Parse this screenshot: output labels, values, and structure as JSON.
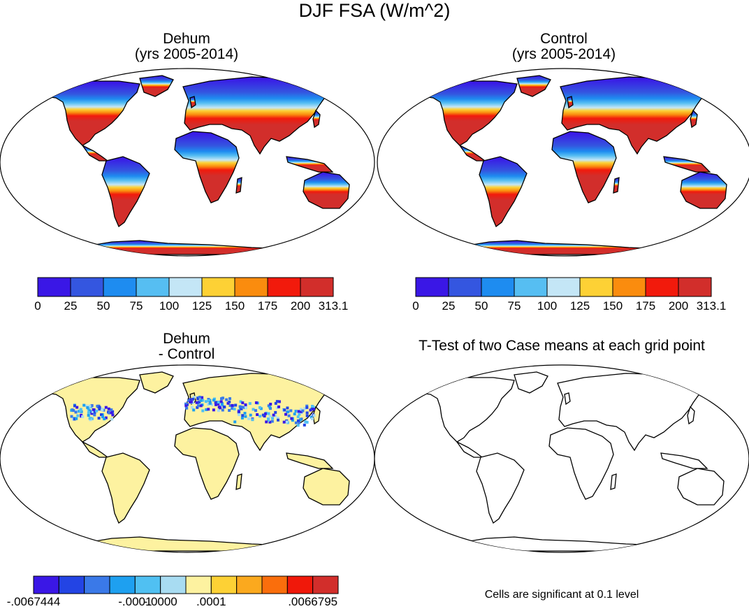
{
  "figure": {
    "title": "DJF FSA (W/m^2)",
    "colors": {
      "abs_scale": [
        "#3a17e6",
        "#3456e0",
        "#1e8cf0",
        "#56bef2",
        "#c4e6f6",
        "#fdd135",
        "#fa8c0e",
        "#f21a0c",
        "#d22e2b"
      ],
      "diff_scale": [
        "#3a17e6",
        "#2344e4",
        "#3a79e8",
        "#1ea0f0",
        "#50c0f2",
        "#a8dcf2",
        "#fdf2a0",
        "#fdd135",
        "#fba91e",
        "#fa6e0c",
        "#f0180a",
        "#d22e2b"
      ],
      "land_diff": "#fdf2a0",
      "outline": "#000000"
    }
  },
  "chart_data": [
    {
      "type": "heatmap",
      "panel": "top-left",
      "title_line1": "Dehum",
      "title_line2": "(yrs 2005-2014)",
      "projection": "Robinson",
      "variable": "FSA",
      "units": "W/m^2",
      "colorbar": {
        "levels": [
          0,
          25,
          50,
          75,
          100,
          125,
          150,
          175,
          200,
          313.1
        ],
        "tick_labels": [
          "0",
          "25",
          "50",
          "75",
          "100",
          "125",
          "150",
          "175",
          "200",
          "313.1"
        ]
      }
    },
    {
      "type": "heatmap",
      "panel": "top-right",
      "title_line1": "Control",
      "title_line2": "(yrs 2005-2014)",
      "projection": "Robinson",
      "variable": "FSA",
      "units": "W/m^2",
      "colorbar": {
        "levels": [
          0,
          25,
          50,
          75,
          100,
          125,
          150,
          175,
          200,
          313.1
        ],
        "tick_labels": [
          "0",
          "25",
          "50",
          "75",
          "100",
          "125",
          "150",
          "175",
          "200",
          "313.1"
        ]
      }
    },
    {
      "type": "heatmap",
      "panel": "bottom-left",
      "title_line1": "Dehum",
      "title_line2": "- Control",
      "projection": "Robinson",
      "variable": "FSA difference",
      "colorbar": {
        "n_bins": 12,
        "tick_labels": [
          {
            "text": "-.0067444",
            "edge": 0
          },
          {
            "text": "-.0001",
            "edge": 4
          },
          {
            "text": "-.0000",
            "edge": 5
          },
          {
            "text": ".0001",
            "edge": 7
          },
          {
            "text": ".0066795",
            "edge": 11
          }
        ]
      }
    },
    {
      "type": "heatmap",
      "panel": "bottom-right",
      "title_line1": "T-Test of two Case means at each grid point",
      "projection": "Robinson",
      "note": "Cells are significant at 0.1 level",
      "significant_cells": []
    }
  ]
}
